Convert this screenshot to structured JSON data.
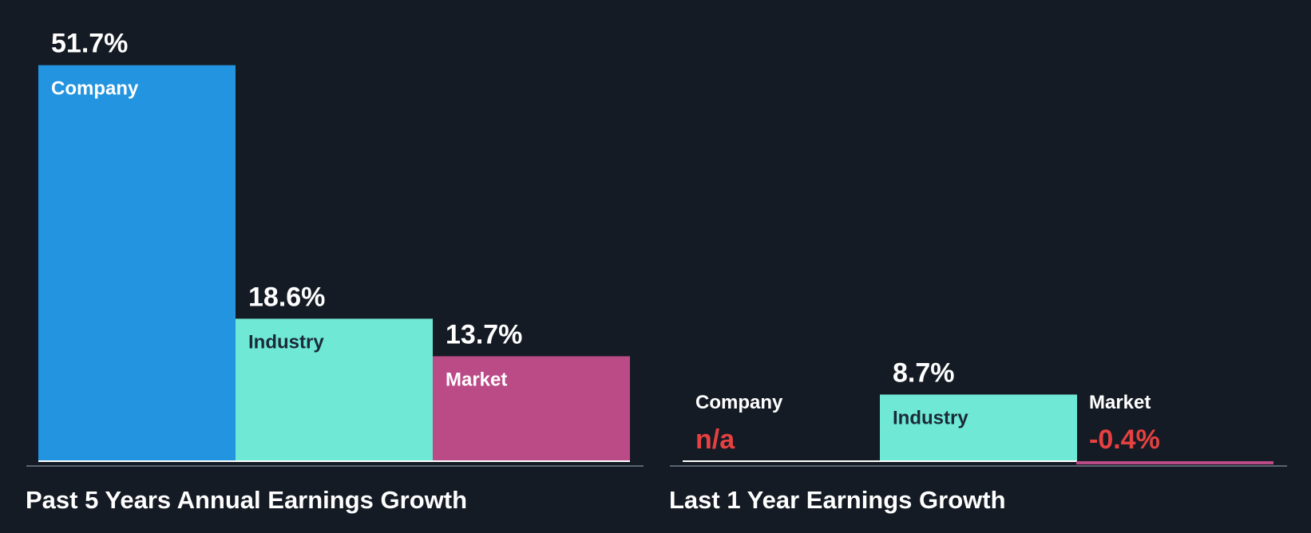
{
  "colors": {
    "background": "#151b24",
    "company": "#2394df",
    "industry": "#6fe8d6",
    "market": "#bb4b87",
    "negative_text": "#e64141",
    "axis": "#ffffff"
  },
  "chart_data": [
    {
      "type": "bar",
      "title": "Past 5 Years Annual Earnings Growth",
      "categories": [
        "Company",
        "Industry",
        "Market"
      ],
      "values": [
        51.7,
        18.6,
        13.7
      ],
      "value_labels": [
        "51.7%",
        "18.6%",
        "13.7%"
      ],
      "unit": "%"
    },
    {
      "type": "bar",
      "title": "Last 1 Year Earnings Growth",
      "categories": [
        "Company",
        "Industry",
        "Market"
      ],
      "values": [
        null,
        8.7,
        -0.4
      ],
      "value_labels": [
        "n/a",
        "8.7%",
        "-0.4%"
      ],
      "unit": "%"
    }
  ]
}
